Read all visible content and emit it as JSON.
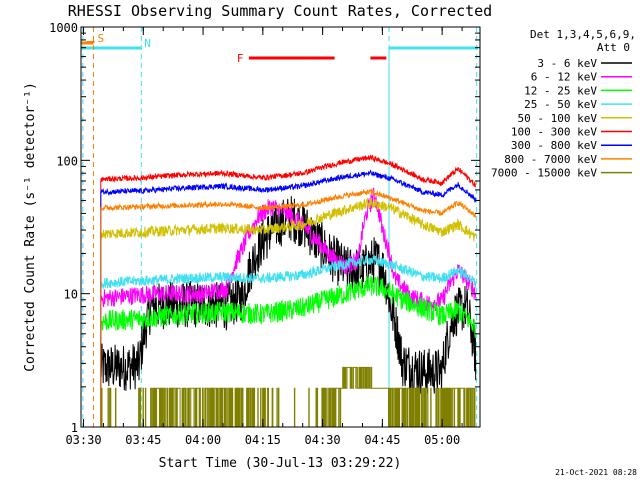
{
  "chart_data": {
    "type": "line",
    "title": "RHESSI Observing Summary Count Rates, Corrected",
    "xlabel": "Start Time (30-Jul-13 03:29:22)",
    "ylabel": "Corrected Count Rate (s⁻¹ detector⁻¹)",
    "yscale": "log",
    "ylim": [
      1,
      1000
    ],
    "xlim": [
      "03:29:22",
      "05:09:30"
    ],
    "x_tick_labels": [
      "03:30",
      "03:45",
      "04:00",
      "04:15",
      "04:30",
      "04:45",
      "05:00"
    ],
    "y_tick_labels": [
      "1",
      "10",
      "100",
      "1000"
    ],
    "legend_position": "right",
    "legend_header": [
      "Det 1,3,4,5,6,9,",
      "Att 0"
    ],
    "footer_date": "21-Oct-2021 08:28",
    "grid": false,
    "flags": [
      {
        "label": "S",
        "color": "#ff8000",
        "segments": [
          [
            "03:29:22",
            "03:32:30"
          ]
        ],
        "marker_time": "03:32:30"
      },
      {
        "label": "N",
        "color": "#40e0f0",
        "segments": [
          [
            "03:29:22",
            "03:44:30"
          ],
          [
            "04:46:40",
            "05:09:00"
          ]
        ]
      },
      {
        "label": "F",
        "color": "#ff0000",
        "segments": [
          [
            "04:11:30",
            "04:33:00"
          ],
          [
            "04:42:00",
            "04:46:00"
          ]
        ]
      }
    ],
    "night_boundaries": [
      "03:29:50",
      "03:44:30",
      "04:46:40",
      "05:08:40"
    ],
    "saa_marker": "03:32:30",
    "data_start": "03:34:20",
    "data_end": "05:08:30",
    "series": [
      {
        "name": "3 - 6 keV",
        "color": "#000000",
        "noise": 0.18,
        "x": [
          "03:34:20",
          "03:40",
          "03:44",
          "03:47",
          "03:52",
          "04:00",
          "04:06",
          "04:10",
          "04:14",
          "04:18",
          "04:22",
          "04:25",
          "04:28",
          "04:32",
          "04:36",
          "04:40",
          "04:43",
          "04:45",
          "04:47",
          "04:50",
          "04:55",
          "05:00",
          "05:03",
          "05:06",
          "05:08:30"
        ],
        "y": [
          2.8,
          2.8,
          2.9,
          8.0,
          8.2,
          8.3,
          8.0,
          9.5,
          22,
          32,
          37,
          33,
          26,
          19,
          15,
          15,
          18,
          16,
          8,
          3.0,
          2.6,
          2.6,
          7.0,
          8.0,
          3.0
        ]
      },
      {
        "name": "6 - 12 keV",
        "color": "#ff00ff",
        "noise": 0.07,
        "x": [
          "03:34:20",
          "03:40",
          "03:44",
          "03:50",
          "04:00",
          "04:06",
          "04:10",
          "04:14",
          "04:17",
          "04:20",
          "04:24",
          "04:28",
          "04:32",
          "04:36",
          "04:39",
          "04:41",
          "04:43",
          "04:45",
          "04:48",
          "04:52",
          "04:56",
          "05:00",
          "05:04",
          "05:08:30"
        ],
        "y": [
          9.2,
          9.5,
          9.8,
          10,
          10,
          11,
          22,
          38,
          45,
          42,
          35,
          26,
          19,
          16,
          18,
          40,
          55,
          30,
          13,
          9.5,
          8.5,
          8.8,
          15,
          10
        ]
      },
      {
        "name": "12 - 25 keV",
        "color": "#00ff00",
        "noise": 0.08,
        "x": [
          "03:34:20",
          "03:45",
          "03:55",
          "04:05",
          "04:15",
          "04:25",
          "04:35",
          "04:42",
          "04:45",
          "04:50",
          "04:55",
          "05:00",
          "05:04",
          "05:08:30"
        ],
        "y": [
          6.2,
          6.5,
          7.0,
          7.3,
          7.0,
          7.8,
          9.8,
          11.5,
          11,
          9.0,
          7.8,
          6.8,
          7.5,
          5.5
        ]
      },
      {
        "name": "25 - 50 keV",
        "color": "#40e0f0",
        "noise": 0.04,
        "x": [
          "03:34:20",
          "03:45",
          "03:55",
          "04:05",
          "04:15",
          "04:25",
          "04:35",
          "04:42",
          "04:47",
          "04:55",
          "05:00",
          "05:04",
          "05:08:30"
        ],
        "y": [
          12,
          12.5,
          13,
          13.3,
          13,
          13.8,
          16.5,
          18,
          16.5,
          13.5,
          13,
          15,
          12
        ]
      },
      {
        "name": "50 - 100 keV",
        "color": "#d0c000",
        "noise": 0.04,
        "x": [
          "03:34:20",
          "03:45",
          "03:55",
          "04:05",
          "04:15",
          "04:25",
          "04:35",
          "04:42",
          "04:47",
          "04:55",
          "05:00",
          "05:04",
          "05:08:30"
        ],
        "y": [
          28,
          29,
          30,
          31,
          30,
          33,
          42,
          48,
          44,
          33,
          29,
          33,
          26
        ]
      },
      {
        "name": "100 - 300 keV",
        "color": "#ff0000",
        "noise": 0.02,
        "x": [
          "03:34:20",
          "03:45",
          "03:55",
          "04:05",
          "04:15",
          "04:25",
          "04:35",
          "04:42",
          "04:47",
          "04:55",
          "05:00",
          "05:04",
          "05:08:30"
        ],
        "y": [
          72,
          74,
          78,
          80,
          74,
          80,
          97,
          105,
          94,
          72,
          68,
          86,
          64
        ]
      },
      {
        "name": "300 - 800 keV",
        "color": "#0000ff",
        "noise": 0.02,
        "x": [
          "03:34:20",
          "03:45",
          "03:55",
          "04:05",
          "04:15",
          "04:25",
          "04:35",
          "04:42",
          "04:47",
          "04:55",
          "05:00",
          "05:04",
          "05:08:30"
        ],
        "y": [
          58,
          59,
          62,
          64,
          60,
          64,
          75,
          80,
          73,
          58,
          55,
          66,
          50
        ]
      },
      {
        "name": "800 - 7000 keV",
        "color": "#ff8000",
        "noise": 0.02,
        "x": [
          "03:34:20",
          "03:45",
          "03:55",
          "04:05",
          "04:15",
          "04:25",
          "04:35",
          "04:42",
          "04:47",
          "04:55",
          "05:00",
          "05:04",
          "05:08:30"
        ],
        "y": [
          44,
          45,
          46,
          47,
          44,
          46,
          54,
          58,
          52,
          42,
          40,
          48,
          38
        ]
      },
      {
        "name": "7000 - 15000 keV",
        "color": "#808000",
        "noise": 0.0,
        "binary": true,
        "low": 1.0,
        "high": 1.95,
        "x": [
          "03:34:20",
          "03:45",
          "03:48",
          "03:54",
          "04:00",
          "04:08",
          "04:20",
          "04:28",
          "04:35",
          "04:41",
          "04:46",
          "04:50",
          "04:56",
          "05:00",
          "05:05",
          "05:08:30"
        ],
        "y": [
          0.05,
          0.1,
          0.6,
          0.6,
          0.5,
          0.4,
          0.1,
          0.05,
          0.8,
          1.0,
          1.0,
          0.3,
          0.4,
          0.3,
          0.8,
          0.2
        ],
        "upper_band": [
          [
            "04:35",
            "04:42:30"
          ]
        ]
      }
    ]
  }
}
